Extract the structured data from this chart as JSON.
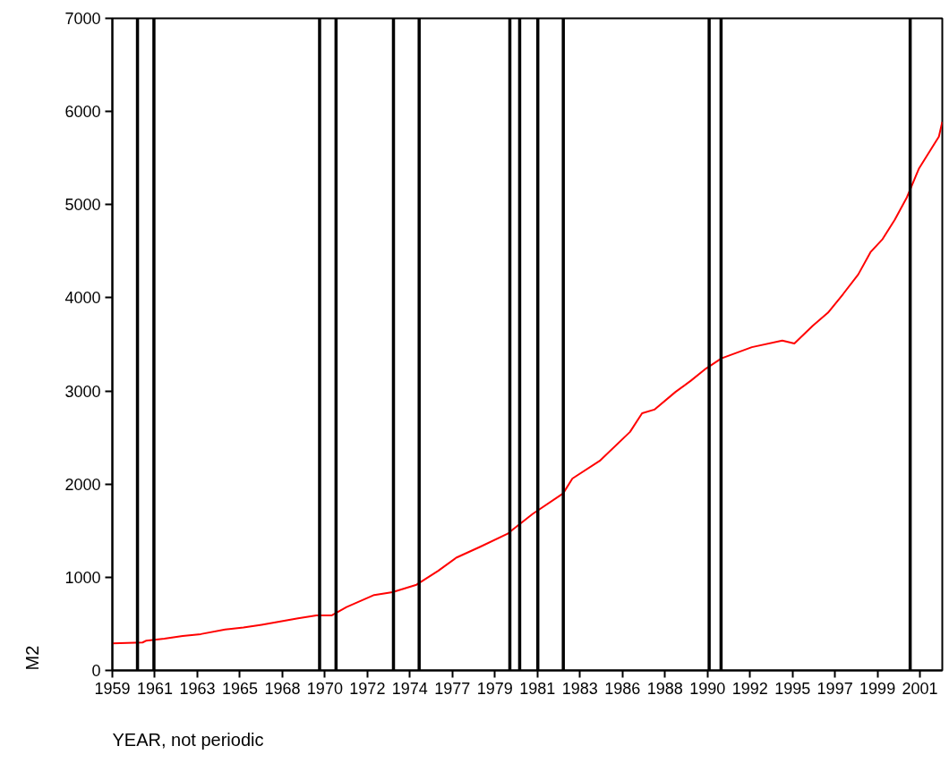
{
  "chart_data": {
    "type": "line",
    "xlabel": "YEAR, not periodic",
    "ylabel": "M2",
    "x": [
      1958.75,
      1960.35,
      1960.55,
      1961.5,
      1962.47,
      1963.43,
      1964.72,
      1965.69,
      1966.65,
      1967.78,
      1968.58,
      1969.55,
      1970.35,
      1971.15,
      1972.61,
      1973.58,
      1974.85,
      1976.0,
      1976.95,
      1978.25,
      1979.7,
      1979.87,
      1981.0,
      1982.61,
      1983.1,
      1984.55,
      1986.15,
      1986.79,
      1987.44,
      1988.56,
      1989.37,
      1990.17,
      1990.99,
      1992.6,
      1994.21,
      1994.85,
      1995.82,
      1996.63,
      1997.43,
      1998.23,
      1998.88,
      1999.52,
      2000.17,
      2000.81,
      2001.45,
      2002.1,
      2002.5,
      2002.68
    ],
    "series": [
      {
        "color": "#ff0000",
        "values": [
          290,
          300,
          320,
          340,
          370,
          390,
          440,
          460,
          490,
          530,
          560,
          590,
          590,
          680,
          810,
          840,
          920,
          1070,
          1210,
          1330,
          1470,
          1500,
          1680,
          1900,
          2060,
          2250,
          2560,
          2760,
          2800,
          2990,
          3110,
          3240,
          3350,
          3470,
          3540,
          3510,
          3700,
          3840,
          4040,
          4250,
          4490,
          4630,
          4840,
          5080,
          5390,
          5600,
          5730,
          5890
        ]
      }
    ],
    "xlim": [
      1958.75,
      2002.68
    ],
    "xticks": [
      {
        "value": 1958.75,
        "label": "1959"
      },
      {
        "value": 1961.0,
        "label": "1961"
      },
      {
        "value": 1963.25,
        "label": "1963"
      },
      {
        "value": 1965.5,
        "label": "1965"
      },
      {
        "value": 1967.75,
        "label": "1968"
      },
      {
        "value": 1970.0,
        "label": "1970"
      },
      {
        "value": 1972.25,
        "label": "1972"
      },
      {
        "value": 1974.5,
        "label": "1974"
      },
      {
        "value": 1976.75,
        "label": "1977"
      },
      {
        "value": 1979.0,
        "label": "1979"
      },
      {
        "value": 1981.25,
        "label": "1981"
      },
      {
        "value": 1983.5,
        "label": "1983"
      },
      {
        "value": 1985.75,
        "label": "1986"
      },
      {
        "value": 1988.0,
        "label": "1988"
      },
      {
        "value": 1990.25,
        "label": "1990"
      },
      {
        "value": 1992.5,
        "label": "1992"
      },
      {
        "value": 1994.75,
        "label": "1995"
      },
      {
        "value": 1997.0,
        "label": "1997"
      },
      {
        "value": 1999.25,
        "label": "1999"
      },
      {
        "value": 2001.5,
        "label": "2001"
      }
    ],
    "ylim": [
      0,
      7000
    ],
    "yticks": [
      0,
      1000,
      2000,
      3000,
      4000,
      5000,
      6000,
      7000
    ],
    "ref_lines": [
      {
        "axis": "x",
        "value": 1960.08,
        "color": "#000000"
      },
      {
        "axis": "x",
        "value": 1960.95,
        "color": "#000000"
      },
      {
        "axis": "x",
        "value": 1969.72,
        "color": "#000000"
      },
      {
        "axis": "x",
        "value": 1970.59,
        "color": "#000000"
      },
      {
        "axis": "x",
        "value": 1973.63,
        "color": "#000000"
      },
      {
        "axis": "x",
        "value": 1974.99,
        "color": "#000000"
      },
      {
        "axis": "x",
        "value": 1979.79,
        "color": "#000000"
      },
      {
        "axis": "x",
        "value": 1980.31,
        "color": "#000000"
      },
      {
        "axis": "x",
        "value": 1981.27,
        "color": "#000000"
      },
      {
        "axis": "x",
        "value": 1982.62,
        "color": "#000000"
      },
      {
        "axis": "x",
        "value": 1990.34,
        "color": "#000000"
      },
      {
        "axis": "x",
        "value": 1990.97,
        "color": "#000000"
      },
      {
        "axis": "x",
        "value": 2000.98,
        "color": "#000000"
      }
    ],
    "grid": false,
    "marker": "none",
    "line_style": "solid"
  }
}
